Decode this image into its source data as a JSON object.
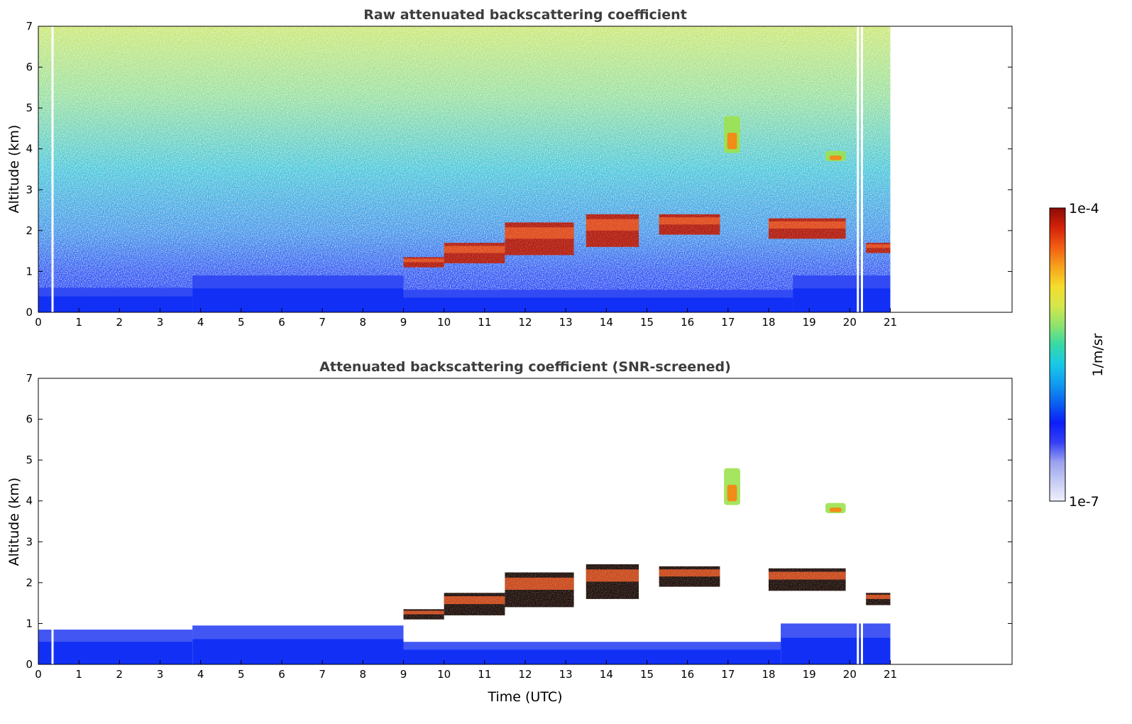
{
  "figure": {
    "xlabel": "Time (UTC)"
  },
  "chart_data": [
    {
      "type": "heatmap",
      "title": "Raw attenuated backscattering coefficient",
      "ylabel": "Altitude (km)",
      "xlabel": "",
      "x_range": [
        0,
        24
      ],
      "y_range": [
        0,
        7
      ],
      "x_ticks": [
        "0",
        "1",
        "2",
        "3",
        "4",
        "5",
        "6",
        "7",
        "8",
        "9",
        "10",
        "11",
        "12",
        "13",
        "14",
        "15",
        "16",
        "17",
        "18",
        "19",
        "20",
        "21"
      ],
      "y_ticks": [
        "0",
        "1",
        "2",
        "3",
        "4",
        "5",
        "6",
        "7"
      ],
      "data_end_time": 21,
      "data_gaps_utc": [
        0.35,
        20.2,
        20.3
      ],
      "surface_layer": [
        {
          "start": 0,
          "end": 3.8,
          "top_km": 0.6
        },
        {
          "start": 3.8,
          "end": 9.0,
          "top_km": 0.9
        },
        {
          "start": 9.0,
          "end": 18.6,
          "top_km": 0.55
        },
        {
          "start": 18.6,
          "end": 21,
          "top_km": 0.9
        }
      ],
      "cloud_layers": [
        {
          "start": 9.0,
          "end": 10.0,
          "base_km": 1.1,
          "top_km": 1.35
        },
        {
          "start": 10.0,
          "end": 11.5,
          "base_km": 1.2,
          "top_km": 1.7
        },
        {
          "start": 11.5,
          "end": 13.2,
          "base_km": 1.4,
          "top_km": 2.2
        },
        {
          "start": 13.5,
          "end": 14.8,
          "base_km": 1.6,
          "top_km": 2.4
        },
        {
          "start": 15.3,
          "end": 16.8,
          "base_km": 1.9,
          "top_km": 2.4
        },
        {
          "start": 18.0,
          "end": 19.9,
          "base_km": 1.8,
          "top_km": 2.3
        },
        {
          "start": 20.4,
          "end": 21.0,
          "base_km": 1.45,
          "top_km": 1.7
        },
        {
          "start": 16.9,
          "end": 17.3,
          "base_km": 3.9,
          "top_km": 4.8
        },
        {
          "start": 19.4,
          "end": 19.9,
          "base_km": 3.7,
          "top_km": 3.95
        }
      ]
    },
    {
      "type": "heatmap",
      "title": "Attenuated backscattering coefficient (SNR-screened)",
      "ylabel": "Altitude (km)",
      "xlabel": "Time (UTC)",
      "x_range": [
        0,
        24
      ],
      "y_range": [
        0,
        7
      ],
      "x_ticks": [
        "0",
        "1",
        "2",
        "3",
        "4",
        "5",
        "6",
        "7",
        "8",
        "9",
        "10",
        "11",
        "12",
        "13",
        "14",
        "15",
        "16",
        "17",
        "18",
        "19",
        "20",
        "21"
      ],
      "y_ticks": [
        "0",
        "1",
        "2",
        "3",
        "4",
        "5",
        "6",
        "7"
      ],
      "data_end_time": 21,
      "data_gaps_utc": [
        0.35,
        20.2,
        20.3
      ],
      "surface_layer": [
        {
          "start": 0,
          "end": 3.8,
          "top_km": 0.85
        },
        {
          "start": 3.8,
          "end": 9.0,
          "top_km": 0.95
        },
        {
          "start": 9.0,
          "end": 18.3,
          "top_km": 0.55
        },
        {
          "start": 18.3,
          "end": 21,
          "top_km": 1.0
        }
      ],
      "cloud_layers": [
        {
          "start": 9.0,
          "end": 10.0,
          "base_km": 1.1,
          "top_km": 1.35
        },
        {
          "start": 10.0,
          "end": 11.5,
          "base_km": 1.2,
          "top_km": 1.75
        },
        {
          "start": 11.5,
          "end": 13.2,
          "base_km": 1.4,
          "top_km": 2.25
        },
        {
          "start": 13.5,
          "end": 14.8,
          "base_km": 1.6,
          "top_km": 2.45
        },
        {
          "start": 15.3,
          "end": 16.8,
          "base_km": 1.9,
          "top_km": 2.4
        },
        {
          "start": 18.0,
          "end": 19.9,
          "base_km": 1.8,
          "top_km": 2.35
        },
        {
          "start": 20.4,
          "end": 21.0,
          "base_km": 1.45,
          "top_km": 1.75
        },
        {
          "start": 16.9,
          "end": 17.3,
          "base_km": 3.9,
          "top_km": 4.8
        },
        {
          "start": 19.4,
          "end": 19.9,
          "base_km": 3.7,
          "top_km": 3.95
        }
      ]
    }
  ],
  "colorbar": {
    "label": "1/m/sr",
    "max_label": "1e-4",
    "min_label": "1e-7",
    "scale": "log",
    "range": [
      1e-07,
      0.0001
    ],
    "colors": [
      "#eef0fb",
      "#c6cbf3",
      "#9aa2ee",
      "#3540f5",
      "#0b1ef8",
      "#0b5ff0",
      "#109bf0",
      "#19c9e6",
      "#36d9a6",
      "#8ee36b",
      "#d6e64a",
      "#f5dc2c",
      "#f7a11c",
      "#f25d12",
      "#d4220a",
      "#8c0a05"
    ]
  }
}
